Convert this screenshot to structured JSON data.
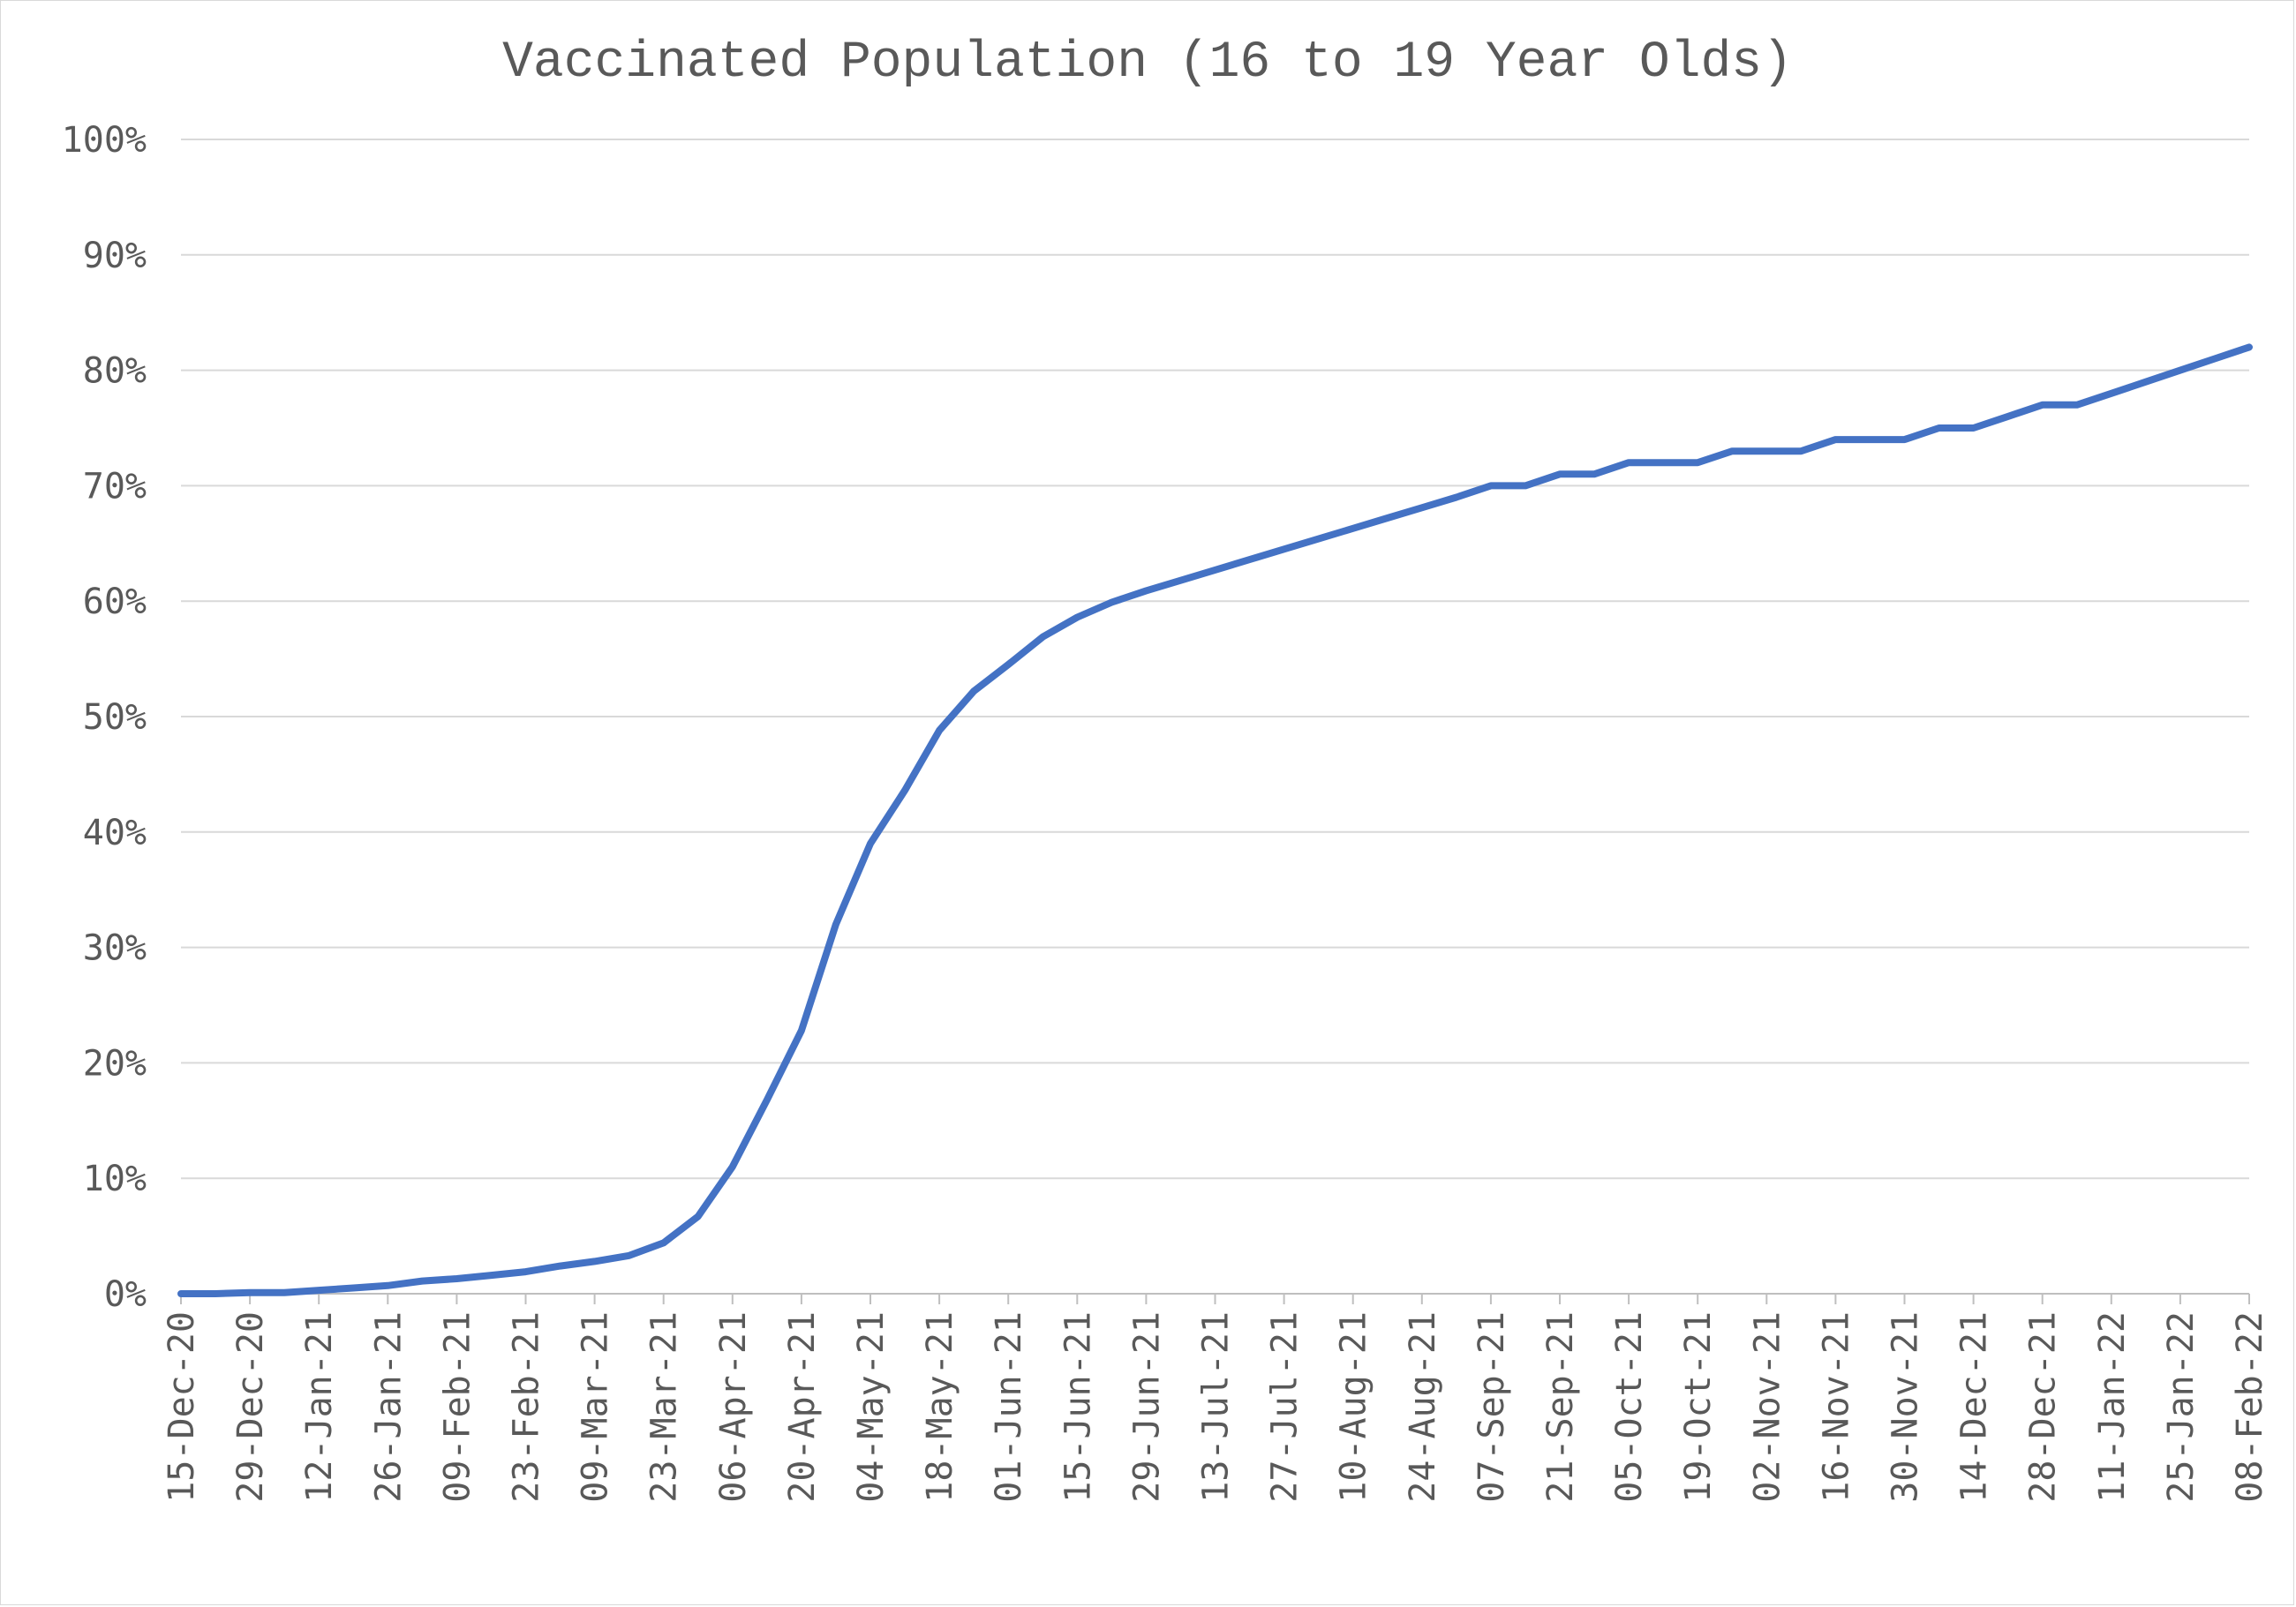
{
  "chart_data": {
    "type": "line",
    "title": "Vaccinated Population (16 to 19 Year Olds)",
    "xlabel": "",
    "ylabel": "",
    "ylim": [
      0,
      1
    ],
    "y_ticks": [
      0,
      0.1,
      0.2,
      0.3,
      0.4,
      0.5,
      0.6,
      0.7,
      0.8,
      0.9,
      1.0
    ],
    "y_tick_labels": [
      "0%",
      "10%",
      "20%",
      "30%",
      "40%",
      "50%",
      "60%",
      "70%",
      "80%",
      "90%",
      "100%"
    ],
    "x_tick_labels": [
      "15-Dec-20",
      "29-Dec-20",
      "12-Jan-21",
      "26-Jan-21",
      "09-Feb-21",
      "23-Feb-21",
      "09-Mar-21",
      "23-Mar-21",
      "06-Apr-21",
      "20-Apr-21",
      "04-May-21",
      "18-May-21",
      "01-Jun-21",
      "15-Jun-21",
      "29-Jun-21",
      "13-Jul-21",
      "27-Jul-21",
      "10-Aug-21",
      "24-Aug-21",
      "07-Sep-21",
      "21-Sep-21",
      "05-Oct-21",
      "19-Oct-21",
      "02-Nov-21",
      "16-Nov-21",
      "30-Nov-21",
      "14-Dec-21",
      "28-Dec-21",
      "11-Jan-22",
      "25-Jan-22",
      "08-Feb-22"
    ],
    "grid": true,
    "legend": "none",
    "series_color": "#4472c4",
    "series": [
      {
        "x": [
          "15-Dec-20",
          "22-Dec-20",
          "29-Dec-20",
          "05-Jan-21",
          "12-Jan-21",
          "19-Jan-21",
          "26-Jan-21",
          "02-Feb-21",
          "09-Feb-21",
          "16-Feb-21",
          "23-Feb-21",
          "02-Mar-21",
          "09-Mar-21",
          "16-Mar-21",
          "23-Mar-21",
          "30-Mar-21",
          "06-Apr-21",
          "13-Apr-21",
          "20-Apr-21",
          "27-Apr-21",
          "04-May-21",
          "11-May-21",
          "18-May-21",
          "25-May-21",
          "01-Jun-21",
          "08-Jun-21",
          "15-Jun-21",
          "22-Jun-21",
          "29-Jun-21",
          "06-Jul-21",
          "13-Jul-21",
          "20-Jul-21",
          "27-Jul-21",
          "03-Aug-21",
          "10-Aug-21",
          "17-Aug-21",
          "24-Aug-21",
          "31-Aug-21",
          "07-Sep-21",
          "14-Sep-21",
          "21-Sep-21",
          "28-Sep-21",
          "05-Oct-21",
          "12-Oct-21",
          "19-Oct-21",
          "26-Oct-21",
          "02-Nov-21",
          "09-Nov-21",
          "16-Nov-21",
          "23-Nov-21",
          "30-Nov-21",
          "07-Dec-21",
          "14-Dec-21",
          "21-Dec-21",
          "28-Dec-21",
          "04-Jan-22",
          "11-Jan-22",
          "18-Jan-22",
          "25-Jan-22",
          "01-Feb-22",
          "08-Feb-22"
        ],
        "values": [
          0.0,
          0.0,
          0.001,
          0.001,
          0.003,
          0.005,
          0.007,
          0.011,
          0.013,
          0.016,
          0.019,
          0.024,
          0.028,
          0.033,
          0.044,
          0.067,
          0.11,
          0.168,
          0.228,
          0.32,
          0.39,
          0.436,
          0.488,
          0.522,
          0.545,
          0.569,
          0.586,
          0.599,
          0.609,
          0.618,
          0.627,
          0.636,
          0.645,
          0.654,
          0.663,
          0.672,
          0.681,
          0.69,
          0.7,
          0.7,
          0.71,
          0.71,
          0.72,
          0.72,
          0.72,
          0.73,
          0.73,
          0.73,
          0.74,
          0.74,
          0.74,
          0.75,
          0.75,
          0.76,
          0.77,
          0.77,
          0.78,
          0.79,
          0.8,
          0.81,
          0.82
        ]
      }
    ]
  }
}
